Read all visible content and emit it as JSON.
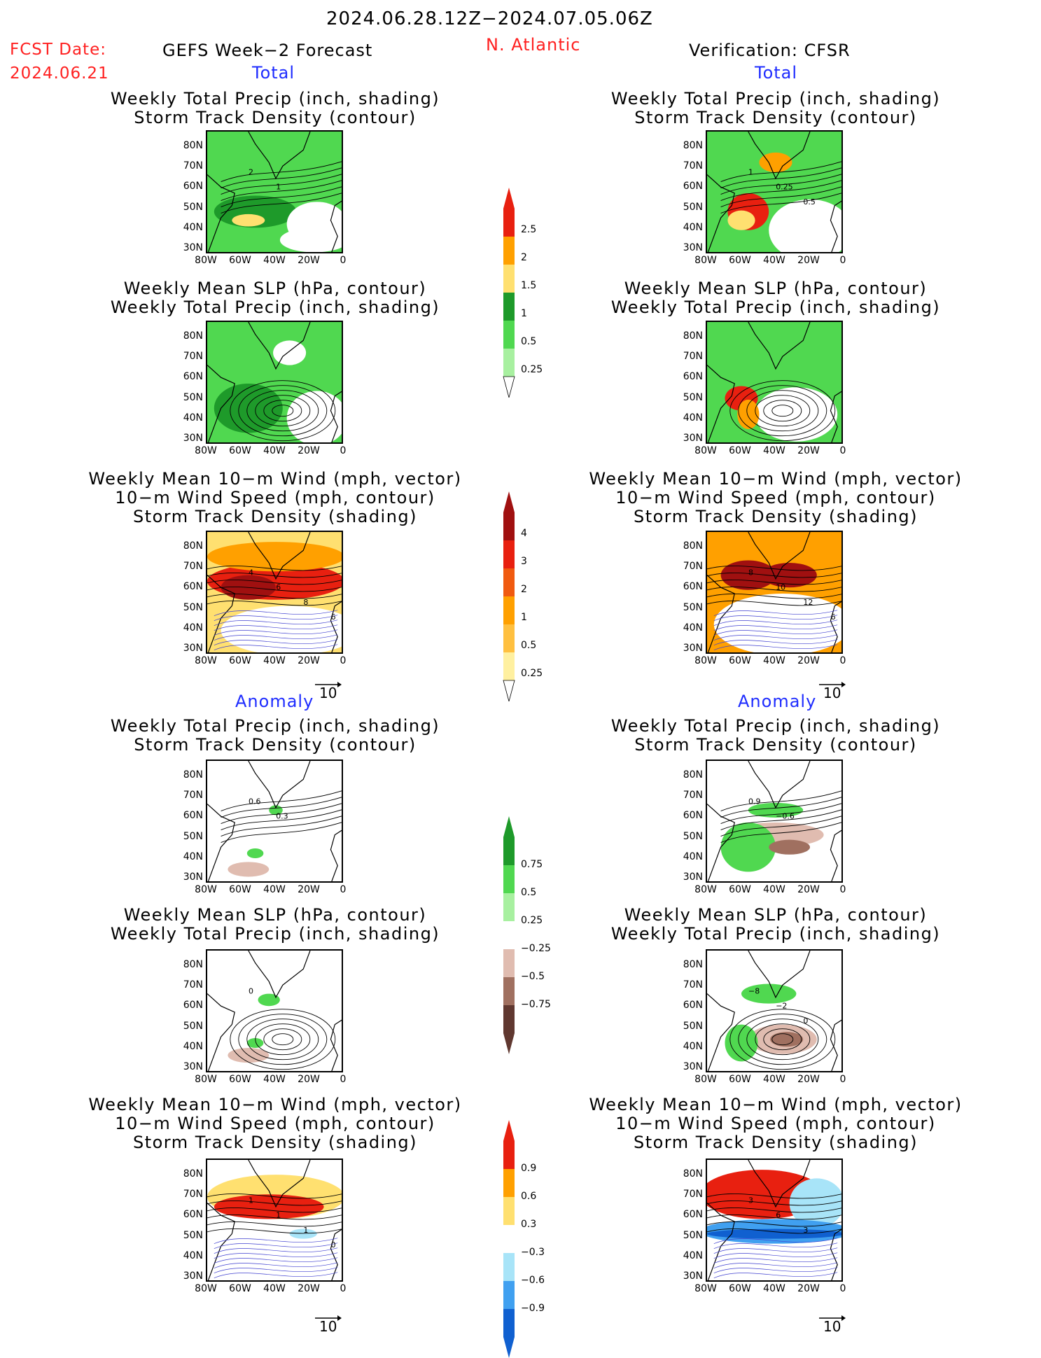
{
  "header": {
    "date_range": "2024.06.28.12Z−2024.07.05.06Z",
    "fcst_label": "FCST Date:",
    "fcst_date": "2024.06.21",
    "left_title": "GEFS Week−2 Forecast",
    "region": "N. Atlantic",
    "right_title": "Verification: CFSR"
  },
  "sections": {
    "total": "Total",
    "anomaly": "Anomaly"
  },
  "panel_titles": {
    "precip_storm": [
      "Weekly Total Precip (inch, shading)",
      "Storm Track Density (contour)"
    ],
    "slp_precip": [
      "Weekly Mean SLP (hPa, contour)",
      "Weekly Total Precip (inch, shading)"
    ],
    "wind_storm": [
      "Weekly Mean 10−m Wind (mph, vector)",
      "10−m Wind Speed (mph, contour)",
      "Storm Track Density (shading)"
    ]
  },
  "axes": {
    "lat_labels": [
      "80N",
      "70N",
      "60N",
      "50N",
      "40N",
      "30N"
    ],
    "lon_labels": [
      "80W",
      "60W",
      "40W",
      "20W",
      "0"
    ]
  },
  "vector_ref": "10",
  "colorbars": {
    "precip_total": [
      "2.5",
      "2",
      "1.5",
      "1",
      "0.5",
      "0.25"
    ],
    "storm_total": [
      "4",
      "3",
      "2",
      "1",
      "0.5",
      "0.25"
    ],
    "precip_anom": [
      "0.75",
      "0.5",
      "0.25",
      "−0.25",
      "−0.5",
      "−0.75"
    ],
    "storm_anom": [
      "0.9",
      "0.6",
      "0.3",
      "−0.3",
      "−0.6",
      "−0.9"
    ]
  },
  "contour_labels": {
    "fcst_total_precip": [
      "2",
      "1"
    ],
    "cfsr_total_precip": [
      "1",
      "0.25",
      "0.5"
    ],
    "fcst_total_wind": [
      "4",
      "6",
      "8",
      "6"
    ],
    "cfsr_total_wind": [
      "8",
      "10",
      "12",
      "6"
    ],
    "fcst_anom_precip": [
      "0.6",
      "0.3"
    ],
    "cfsr_anom_precip": [
      "0.9",
      "−0.6"
    ],
    "fcst_anom_slp": [
      "0"
    ],
    "cfsr_anom_slp": [
      "−8",
      "−2",
      "0"
    ],
    "fcst_anom_wind": [
      "1",
      "1",
      "1",
      "0"
    ],
    "cfsr_anom_wind": [
      "3",
      "6",
      "3"
    ]
  },
  "colors": {
    "title_red": "#ff2020",
    "section_blue": "#1e2cff",
    "green_light": "#a8f0a0",
    "green_mid": "#50d850",
    "green_dark": "#1e9a2a",
    "yellow": "#ffe070",
    "orange": "#ffa000",
    "red": "#e82010",
    "darkred": "#a01010",
    "brown_light": "#e0bcb0",
    "brown": "#a07060",
    "brown_dark": "#603830",
    "blue_light": "#a8e4f8",
    "blue_mid": "#40a0f0",
    "blue_dark": "#1060d0"
  }
}
